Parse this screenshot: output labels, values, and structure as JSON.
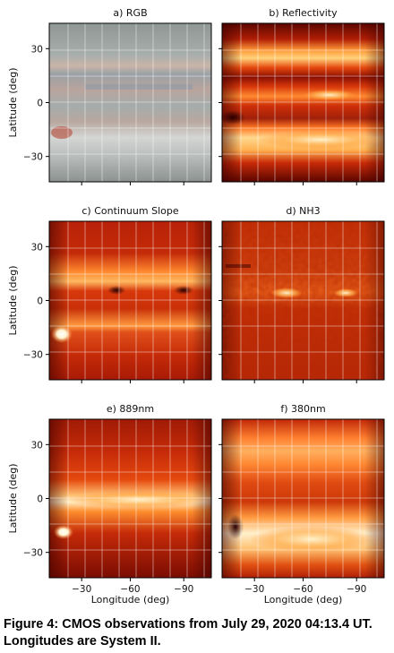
{
  "figure": {
    "caption": "Figure 4: CMOS observations from July 29, 2020 04:13.4 UT. Longitudes are System II.",
    "y_axis_label": "Latitude (deg)",
    "x_axis_label": "Longitude (deg)",
    "y_ticks": [
      "30",
      "0",
      "−30"
    ],
    "x_ticks": [
      "−30",
      "−60",
      "−90"
    ],
    "panels": [
      {
        "id": "a",
        "title": "a) RGB",
        "style": "rgb"
      },
      {
        "id": "b",
        "title": "b) Reflectivity",
        "style": "refl"
      },
      {
        "id": "c",
        "title": "c) Continuum Slope",
        "style": "slope"
      },
      {
        "id": "d",
        "title": "d) NH3",
        "style": "nh3"
      },
      {
        "id": "e",
        "title": "e) 889nm",
        "style": "m889"
      },
      {
        "id": "f",
        "title": "f) 380nm",
        "style": "m380"
      }
    ],
    "colors": {
      "hot_dark": "#3a0000",
      "hot_mid": "#d8280a",
      "hot_light": "#ffe6b0",
      "grid": "#ffffff"
    }
  }
}
